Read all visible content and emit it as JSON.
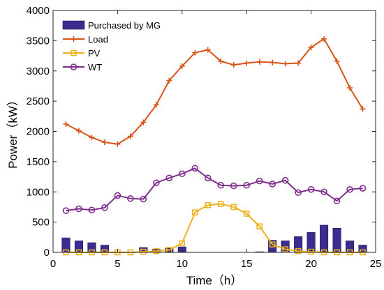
{
  "chart_data": {
    "type": "bar+line",
    "xlabel": "Time（h）",
    "ylabel": "Power（kW）",
    "xlim": [
      0,
      25
    ],
    "ylim": [
      0,
      4000
    ],
    "xticks": [
      0,
      5,
      10,
      15,
      20,
      25
    ],
    "yticks": [
      0,
      500,
      1000,
      1500,
      2000,
      2500,
      3000,
      3500,
      4000
    ],
    "grid": false,
    "legend_position": "top-left",
    "x": [
      1,
      2,
      3,
      4,
      5,
      6,
      7,
      8,
      9,
      10,
      11,
      12,
      13,
      14,
      15,
      16,
      17,
      18,
      19,
      20,
      21,
      22,
      23,
      24
    ],
    "series": [
      {
        "name": "Purchased by MG",
        "kind": "bar",
        "color": "#3a2d8f",
        "values": [
          240,
          190,
          160,
          120,
          0,
          0,
          80,
          50,
          70,
          90,
          0,
          0,
          0,
          0,
          0,
          10,
          200,
          190,
          260,
          330,
          450,
          400,
          190,
          120
        ]
      },
      {
        "name": "Load",
        "kind": "line",
        "marker": "plus",
        "color": "#d95319",
        "values": [
          2120,
          2010,
          1900,
          1820,
          1790,
          1920,
          2150,
          2440,
          2840,
          3080,
          3300,
          3350,
          3160,
          3100,
          3130,
          3150,
          3140,
          3120,
          3130,
          3390,
          3530,
          3160,
          2720,
          2370
        ]
      },
      {
        "name": "PV",
        "kind": "line",
        "marker": "square",
        "color": "#edb120",
        "values": [
          0,
          0,
          0,
          0,
          0,
          0,
          10,
          20,
          40,
          150,
          660,
          780,
          800,
          750,
          640,
          430,
          130,
          50,
          20,
          10,
          0,
          0,
          0,
          0
        ]
      },
      {
        "name": "WT",
        "kind": "line",
        "marker": "circle",
        "color": "#7e2f8e",
        "values": [
          690,
          720,
          700,
          740,
          940,
          890,
          880,
          1150,
          1230,
          1300,
          1390,
          1230,
          1110,
          1100,
          1110,
          1180,
          1130,
          1190,
          990,
          1040,
          1000,
          850,
          1040,
          1060
        ]
      }
    ]
  }
}
